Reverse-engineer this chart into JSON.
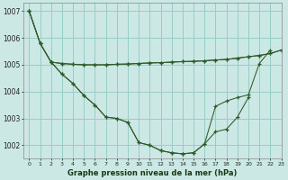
{
  "xlabel": "Graphe pression niveau de la mer (hPa)",
  "xlim": [
    -0.5,
    23
  ],
  "ylim": [
    1001.5,
    1007.3
  ],
  "yticks": [
    1002,
    1003,
    1004,
    1005,
    1006,
    1007
  ],
  "xticks": [
    0,
    1,
    2,
    3,
    4,
    5,
    6,
    7,
    8,
    9,
    10,
    11,
    12,
    13,
    14,
    15,
    16,
    17,
    18,
    19,
    20,
    21,
    22,
    23
  ],
  "bg_color": "#cce8e4",
  "grid_color": "#99cccc",
  "line_color": "#2d5a27",
  "line1_x": [
    0,
    1,
    2,
    3,
    4,
    5,
    6,
    7,
    8,
    9,
    10,
    11,
    12,
    13,
    14,
    15,
    16,
    17,
    18,
    19,
    20,
    21,
    22,
    23
  ],
  "line1_y": [
    1007.0,
    1005.8,
    1005.1,
    1005.05,
    1005.02,
    1005.0,
    1005.0,
    1005.0,
    1005.02,
    1005.03,
    1005.05,
    1005.07,
    1005.08,
    1005.1,
    1005.12,
    1005.13,
    1005.15,
    1005.18,
    1005.2,
    1005.25,
    1005.3,
    1005.35,
    1005.42,
    1005.55
  ],
  "line2_x": [
    0,
    1,
    2,
    3,
    4,
    5,
    6,
    7,
    8,
    9,
    10,
    11,
    12,
    13,
    14,
    15,
    16,
    17,
    18,
    19,
    20,
    21,
    22
  ],
  "line2_y": [
    1007.0,
    1005.8,
    1005.1,
    1004.65,
    1004.3,
    1003.85,
    1003.5,
    1003.05,
    1003.0,
    1002.85,
    1002.1,
    1002.0,
    1001.8,
    1001.72,
    1001.68,
    1001.72,
    1002.05,
    1003.45,
    1003.65,
    1003.78,
    1003.88,
    1005.05,
    1005.55
  ],
  "line3_x": [
    0,
    1,
    2,
    3,
    4,
    5,
    6,
    7,
    8,
    9,
    10,
    11,
    12,
    13,
    14,
    15,
    16,
    17,
    18,
    19,
    20
  ],
  "line3_y": [
    1007.0,
    1005.8,
    1005.1,
    1004.65,
    1004.3,
    1003.85,
    1003.5,
    1003.05,
    1003.0,
    1002.85,
    1002.1,
    1002.0,
    1001.8,
    1001.72,
    1001.68,
    1001.72,
    1002.05,
    1002.5,
    1002.6,
    1003.05,
    1003.78
  ],
  "line4_x": [
    2,
    3,
    4,
    5,
    6,
    7,
    8,
    9,
    10,
    11,
    12,
    13,
    14,
    15,
    16,
    17,
    18,
    19,
    20,
    21,
    22,
    23
  ],
  "line4_y": [
    1005.1,
    1005.05,
    1005.02,
    1005.0,
    1005.0,
    1005.0,
    1005.02,
    1005.03,
    1005.05,
    1005.07,
    1005.08,
    1005.1,
    1005.12,
    1005.13,
    1005.15,
    1005.18,
    1005.2,
    1005.25,
    1005.3,
    1005.35,
    1005.42,
    1005.55
  ]
}
